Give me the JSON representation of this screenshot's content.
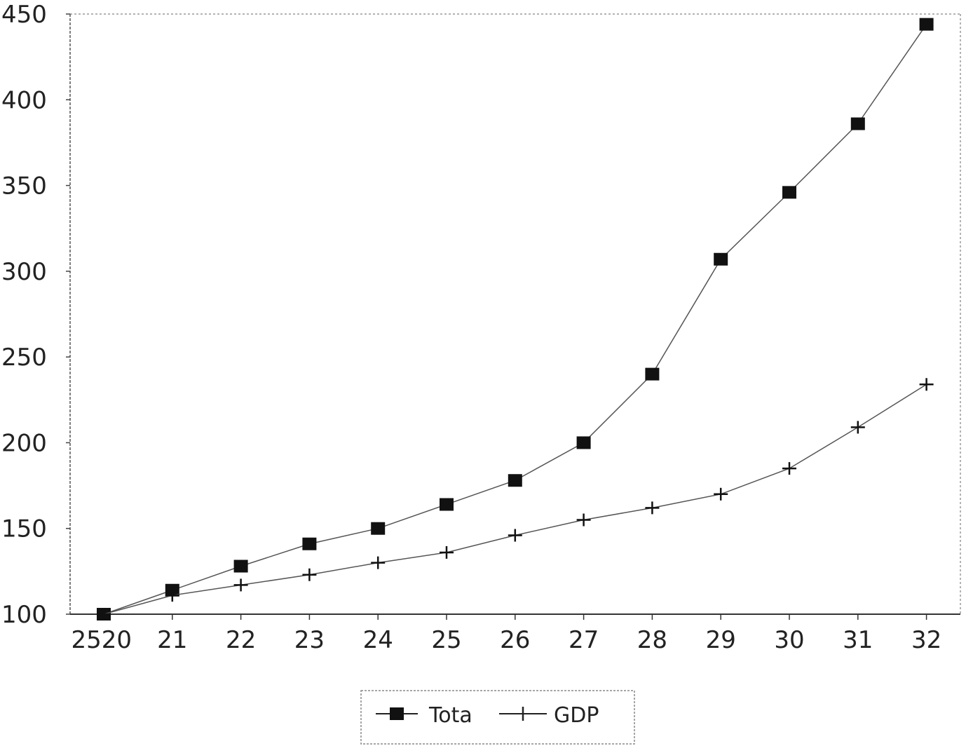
{
  "chart_data": {
    "type": "line",
    "title": "",
    "xlabel": "",
    "ylabel": "",
    "x_tick_labels": [
      "2520",
      "21",
      "22",
      "23",
      "24",
      "25",
      "26",
      "27",
      "28",
      "29",
      "30",
      "31",
      "32"
    ],
    "y_ticks": [
      100,
      150,
      200,
      250,
      300,
      350,
      400,
      450
    ],
    "ylim": [
      100,
      450
    ],
    "grid": false,
    "legend_position": "bottom-center",
    "series": [
      {
        "name": "Tota",
        "marker": "square",
        "color": "#111111",
        "values": [
          100,
          114,
          128,
          141,
          150,
          164,
          178,
          200,
          240,
          307,
          346,
          386,
          444
        ]
      },
      {
        "name": "GDP",
        "marker": "plus",
        "color": "#111111",
        "values": [
          100,
          111,
          117,
          123,
          130,
          136,
          146,
          155,
          162,
          170,
          185,
          209,
          234
        ]
      }
    ]
  }
}
